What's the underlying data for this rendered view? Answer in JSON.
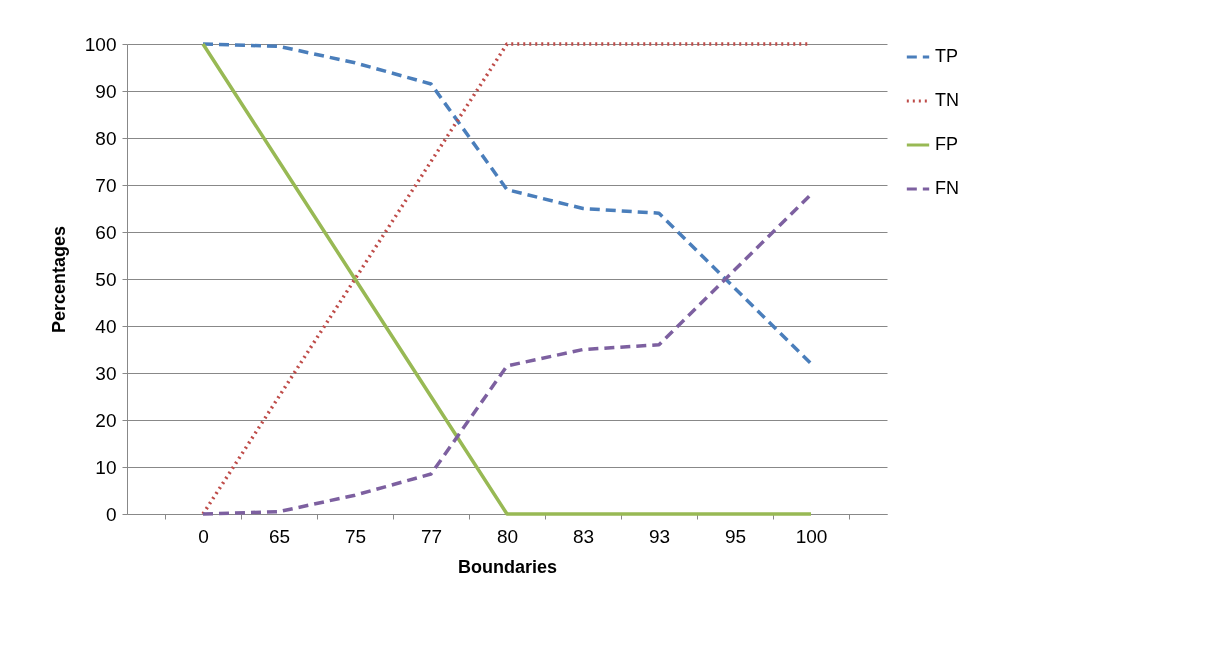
{
  "chart_data": {
    "type": "line",
    "xlabel": "Boundaries",
    "ylabel": "Percentages",
    "categories": [
      "0",
      "65",
      "75",
      "77",
      "80",
      "83",
      "93",
      "95",
      "100"
    ],
    "ylim": [
      0,
      100
    ],
    "yticks": [
      0,
      10,
      20,
      30,
      40,
      50,
      60,
      70,
      80,
      90,
      100
    ],
    "grid": "y",
    "legend": "right",
    "marker": "none",
    "series": [
      {
        "name": "TP",
        "color": "#4a7ebb",
        "line_style": "dashed",
        "values": [
          100,
          99.5,
          96,
          91.5,
          69,
          65,
          64,
          48,
          32
        ]
      },
      {
        "name": "TN",
        "color": "#be4b48",
        "line_style": "dotted",
        "values": [
          0,
          25,
          50,
          75,
          100,
          100,
          100,
          100,
          100
        ]
      },
      {
        "name": "FP",
        "color": "#98b954",
        "line_style": "solid",
        "values": [
          100,
          75,
          50,
          25,
          0,
          0,
          0,
          0,
          0
        ]
      },
      {
        "name": "FN",
        "color": "#7d60a0",
        "line_style": "dashed",
        "values": [
          0,
          0.5,
          4,
          8.5,
          31.5,
          35,
          36,
          52,
          68
        ]
      }
    ]
  }
}
